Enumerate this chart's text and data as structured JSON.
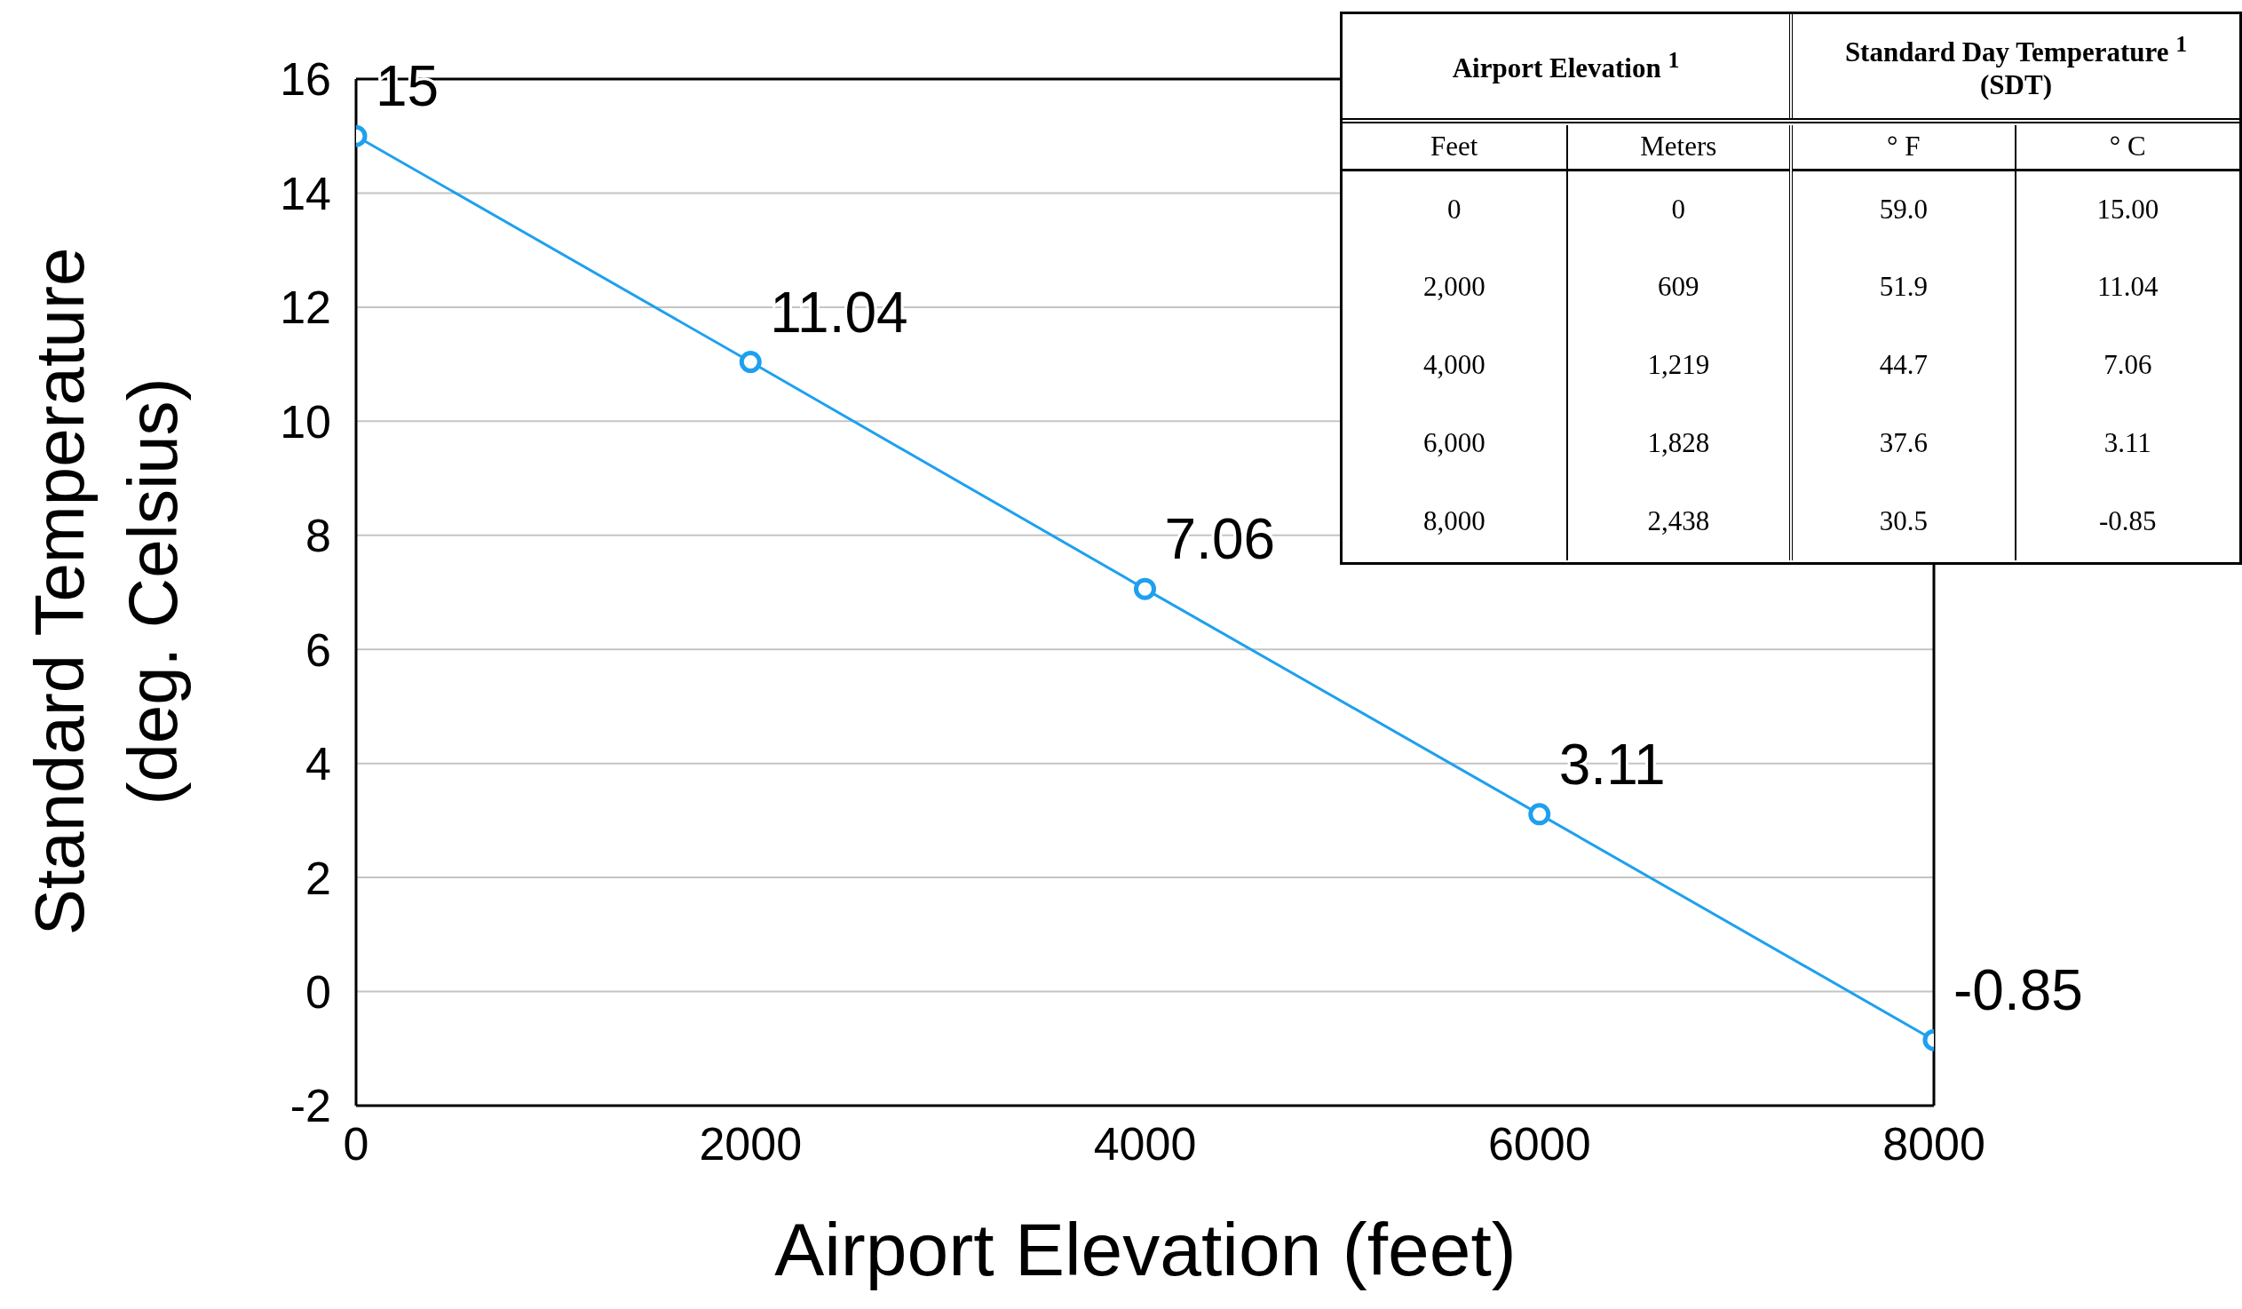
{
  "chart_data": {
    "type": "line",
    "x": [
      0,
      2000,
      4000,
      6000,
      8000
    ],
    "series": [
      {
        "color": "#1ea0f0",
        "values": [
          15,
          11.04,
          7.06,
          3.11,
          -0.85
        ]
      }
    ],
    "xlabel": "Airport Elevation (feet)",
    "ylabel": "Standard Temperature (deg. Celsius)",
    "xlim": [
      0,
      8000
    ],
    "xticks": [
      0,
      2000,
      4000,
      6000,
      8000
    ],
    "ylim": [
      -2,
      16
    ],
    "yticks": [
      -2,
      0,
      2,
      4,
      6,
      8,
      10,
      12,
      14,
      16
    ],
    "grid": "y",
    "marker": "circle",
    "line_style": "solid",
    "data_labels": true,
    "legend": false,
    "annotations": [
      "Airport Elevation $^{1}$",
      "Standard Day Temperature $^{1}$ (SDT)",
      "Feet",
      "Meters",
      "° F",
      "° C",
      "0",
      "0",
      "59.0",
      "15.00",
      "2,000",
      "609",
      "51.9",
      "11.04",
      "4,000",
      "1,219",
      "44.7",
      "7.06",
      "6,000",
      "1,828",
      "37.6",
      "3.11",
      "8,000",
      "2,438",
      "30.5",
      "-0.85"
    ]
  }
}
